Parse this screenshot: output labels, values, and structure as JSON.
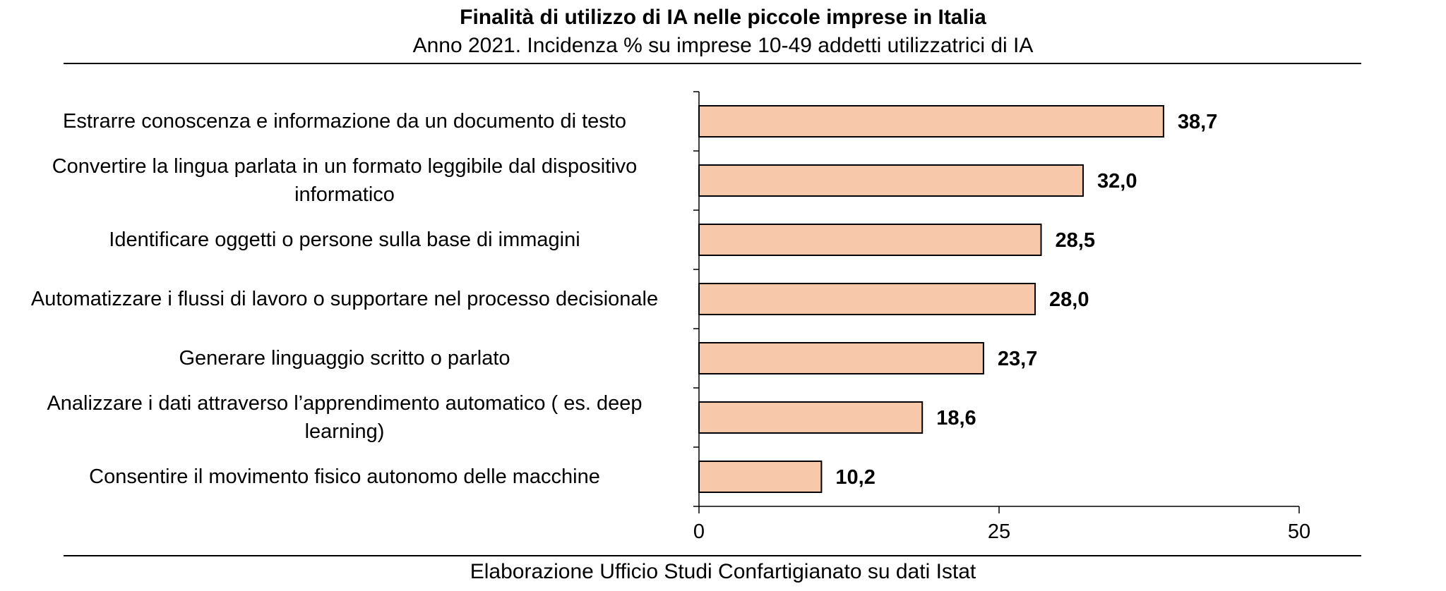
{
  "title": "Finalità di utilizzo di IA nelle piccole imprese in Italia",
  "subtitle": "Anno 2021. Incidenza % su imprese 10-49 addetti utilizzatrici di IA",
  "source": "Elaborazione Ufficio Studi Confartigianato su dati Istat",
  "colors": {
    "bar_fill": "#f7c8aa",
    "bar_stroke": "#000000"
  },
  "chart_data": {
    "type": "bar",
    "orientation": "horizontal",
    "title": "Finalità di utilizzo di IA nelle piccole imprese in Italia",
    "subtitle": "Anno 2021. Incidenza % su imprese 10-49 addetti utilizzatrici di IA",
    "categories": [
      "Estrarre conoscenza e informazione da un documento di testo",
      "Convertire la lingua parlata in un formato leggibile dal dispositivo informatico",
      "Identificare oggetti o persone sulla base di immagini",
      "Automatizzare i flussi di lavoro o supportare nel processo decisionale",
      "Generare linguaggio scritto o parlato",
      "Analizzare i dati attraverso l’apprendimento automatico ( es. deep learning)",
      "Consentire il movimento fisico autonomo delle macchine"
    ],
    "values": [
      38.7,
      32.0,
      28.5,
      28.0,
      23.7,
      18.6,
      10.2
    ],
    "data_labels": [
      "38,7",
      "32,0",
      "28,5",
      "28,0",
      "23,7",
      "18,6",
      "10,2"
    ],
    "xlim": [
      0,
      50
    ],
    "xticks": [
      0,
      25,
      50
    ],
    "xtick_labels": [
      "0",
      "25",
      "50"
    ],
    "grid": false,
    "legend": "none"
  }
}
